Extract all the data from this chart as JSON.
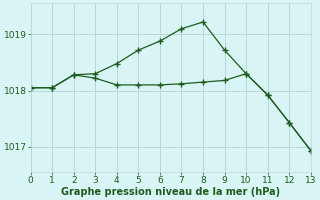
{
  "line1_x": [
    0,
    1,
    2,
    3,
    4,
    5,
    6,
    7,
    8,
    9,
    10,
    11,
    12,
    13
  ],
  "line1_y": [
    1018.05,
    1018.05,
    1018.28,
    1018.3,
    1018.48,
    1018.72,
    1018.88,
    1019.1,
    1019.22,
    1018.72,
    1018.3,
    1017.92,
    1017.43,
    1016.93
  ],
  "line2_x": [
    0,
    1,
    2,
    3,
    4,
    5,
    6,
    7,
    8,
    9,
    10,
    11,
    12,
    13
  ],
  "line2_y": [
    1018.05,
    1018.05,
    1018.28,
    1018.22,
    1018.1,
    1018.1,
    1018.1,
    1018.12,
    1018.15,
    1018.18,
    1018.3,
    1017.92,
    1017.43,
    1016.93
  ],
  "line_color": "#1f5c1f",
  "marker": "+",
  "marker_size": 4,
  "line_width": 0.9,
  "xlim": [
    0,
    13
  ],
  "ylim": [
    1016.55,
    1019.55
  ],
  "yticks": [
    1017,
    1018,
    1019
  ],
  "xticks": [
    0,
    1,
    2,
    3,
    4,
    5,
    6,
    7,
    8,
    9,
    10,
    11,
    12,
    13
  ],
  "xlabel": "Graphe pression niveau de la mer (hPa)",
  "bg_color": "#d8f4f4",
  "grid_color": "#b8d8d8",
  "label_color": "#1f5c1f",
  "tick_fontsize": 6.5,
  "xlabel_fontsize": 7.0
}
